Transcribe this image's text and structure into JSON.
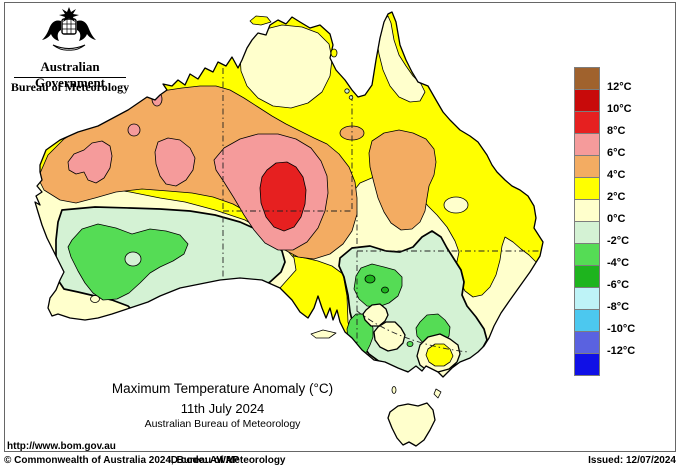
{
  "header": {
    "government": "Australian Government",
    "bureau": "Bureau of Meteorology"
  },
  "map_panel": {
    "title": "Maximum Temperature Anomaly (°C)",
    "date": "11th July 2024",
    "source": "Australian Bureau of Meteorology",
    "url": "http://www.bom.gov.au"
  },
  "legend": {
    "unit": "°C",
    "boundary_labels": [
      "12°C",
      "10°C",
      "8°C",
      "6°C",
      "4°C",
      "2°C",
      "0°C",
      "-2°C",
      "-4°C",
      "-6°C",
      "-8°C",
      "-10°C",
      "-12°C"
    ],
    "band_colors": [
      "#A0622D",
      "#C80A0A",
      "#E62020",
      "#F59B9B",
      "#F3AC62",
      "#FFFF00",
      "#FFFFCC",
      "#D4F2D4",
      "#55DC55",
      "#1EB41E",
      "#BEF3F7",
      "#4CC8EF",
      "#5A62E0",
      "#1010E6"
    ]
  },
  "footer": {
    "copyright": "© Commonwealth of Australia 2024, Bureau of Meteorology",
    "id_code": "ID code: AWAP",
    "issued": "Issued: 12/07/2024"
  },
  "chart_data": {
    "type": "map",
    "subtype": "filled-contour anomaly map",
    "region": "Australia",
    "title": "Maximum Temperature Anomaly (°C)",
    "date": "11th July 2024",
    "scale_degC": [
      12,
      10,
      8,
      6,
      4,
      2,
      0,
      -2,
      -4,
      -6,
      -8,
      -10,
      -12
    ],
    "band_colors_top_to_bottom": [
      "#A0622D",
      "#C80A0A",
      "#E62020",
      "#F59B9B",
      "#F3AC62",
      "#FFFF00",
      "#FFFFCC",
      "#D4F2D4",
      "#55DC55",
      "#1EB41E",
      "#BEF3F7",
      "#4CC8EF",
      "#5A62E0",
      "#1010E6"
    ],
    "notable_features": [
      "+8 to +10 °C anomaly core over southern Northern Territory / far northern South Australia, ringed by +6 to +8 and +4 to +6 bands",
      "+4 to +6 °C band across the Pilbara and Kimberley with small +6 to +8 patches; +4 to +6 blob over inland central Queensland",
      "0 to +2 °C over the Top End, Cape York Peninsula, west coast of WA, coastal NSW, inland SA corridor and Tasmania",
      "-2 to -4 °C (with -4 to -6 spots) over inland south-west Western Australia and the Murray/western NSW–Victoria region",
      "+2 to +4 °C (yellow) over most remaining areas"
    ]
  }
}
